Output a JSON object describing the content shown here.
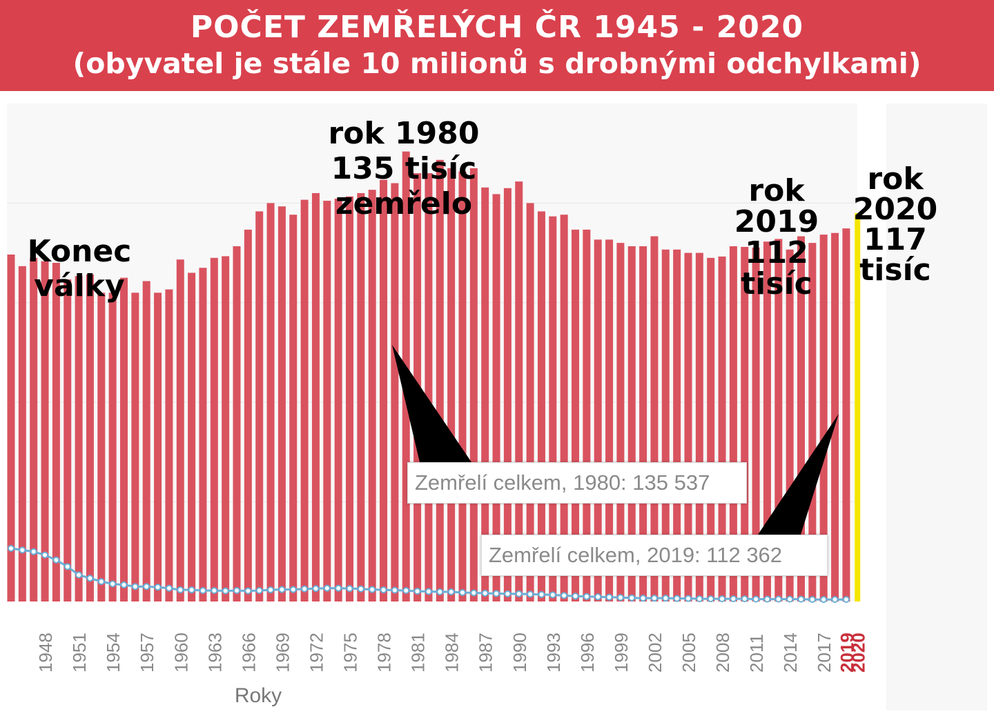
{
  "title": {
    "line1": "POČET ZEMŘELÝCH ČR 1945 - 2020",
    "line2": "(obyvatel je stále 10 milionů s drobnými odchylkami)"
  },
  "annotations": {
    "war_end": [
      "Konec",
      "války"
    ],
    "y1980": [
      "rok 1980",
      "135 tisíc",
      "zemřelo"
    ],
    "y2019": [
      "rok",
      "2019",
      "112",
      "tisíc"
    ],
    "y2020": [
      "rok",
      "2020",
      "117",
      "tisíc"
    ]
  },
  "tooltips": {
    "t1980": "Zemřelí celkem, 1980: 135 537",
    "t2019": "Zemřelí celkem, 2019: 112 362"
  },
  "colors": {
    "banner": "#d9414d",
    "bars": "#d9535f",
    "line": "#6aaed6",
    "highlight_bar": "#f5e600",
    "highlight_label": "#c8303c",
    "axis_label": "#888888"
  },
  "chart_data": {
    "type": "bar",
    "xlabel": "Roky",
    "ylabel": "",
    "ylim": [
      0,
      150000
    ],
    "grid": true,
    "tick_labels": [
      "1948",
      "1951",
      "1954",
      "1957",
      "1960",
      "1963",
      "1966",
      "1969",
      "1972",
      "1975",
      "1978",
      "1981",
      "1984",
      "1987",
      "1990",
      "1993",
      "1996",
      "1999",
      "2002",
      "2005",
      "2008",
      "2011",
      "2014",
      "2017"
    ],
    "highlight_tick_labels": [
      "2019",
      "2020"
    ],
    "x": [
      1945,
      1946,
      1947,
      1948,
      1949,
      1950,
      1951,
      1952,
      1953,
      1954,
      1955,
      1956,
      1957,
      1958,
      1959,
      1960,
      1961,
      1962,
      1963,
      1964,
      1965,
      1966,
      1967,
      1968,
      1969,
      1970,
      1971,
      1972,
      1973,
      1974,
      1975,
      1976,
      1977,
      1978,
      1979,
      1980,
      1981,
      1982,
      1983,
      1984,
      1985,
      1986,
      1987,
      1988,
      1989,
      1990,
      1991,
      1992,
      1993,
      1994,
      1995,
      1996,
      1997,
      1998,
      1999,
      2000,
      2001,
      2002,
      2003,
      2004,
      2005,
      2006,
      2007,
      2008,
      2009,
      2010,
      2011,
      2012,
      2013,
      2014,
      2015,
      2016,
      2017,
      2018,
      2019,
      2020
    ],
    "series": [
      {
        "type": "bar",
        "values": [
          104500,
          101000,
          103500,
          102500,
          102000,
          97000,
          98000,
          98500,
          93000,
          93000,
          97500,
          93000,
          96500,
          93000,
          94000,
          103000,
          99000,
          100500,
          103500,
          104000,
          107000,
          112000,
          117500,
          120000,
          119000,
          116500,
          121000,
          123000,
          120700,
          121300,
          122000,
          123000,
          124000,
          127000,
          126000,
          135537,
          129000,
          129000,
          133000,
          130500,
          129500,
          130500,
          124700,
          122700,
          124500,
          126500,
          120000,
          117500,
          116000,
          116500,
          112000,
          112000,
          109000,
          109000,
          108000,
          107000,
          107000,
          110000,
          106000,
          106000,
          105000,
          105000,
          103500,
          103900,
          107000,
          106800,
          106600,
          108400,
          109200,
          106000,
          110000,
          108000,
          110500,
          111000,
          112362,
          117000
        ]
      },
      {
        "type": "line",
        "values": [
          16000,
          15500,
          15000,
          14000,
          12500,
          10500,
          8000,
          7000,
          6000,
          5300,
          5000,
          4500,
          4500,
          4300,
          4000,
          3500,
          3500,
          3300,
          3300,
          3200,
          3300,
          3200,
          3300,
          3500,
          3600,
          3600,
          3800,
          3900,
          4000,
          4000,
          3900,
          3800,
          3600,
          3500,
          3400,
          3300,
          3100,
          3000,
          2900,
          2900,
          2700,
          2600,
          2500,
          2400,
          2300,
          2300,
          2200,
          2100,
          2000,
          1800,
          1600,
          1500,
          1400,
          1300,
          1200,
          1100,
          1000,
          1000,
          1000,
          900,
          900,
          800,
          800,
          800,
          800,
          800,
          700,
          700,
          700,
          700,
          700,
          600,
          600,
          600,
          600,
          600
        ]
      }
    ]
  }
}
